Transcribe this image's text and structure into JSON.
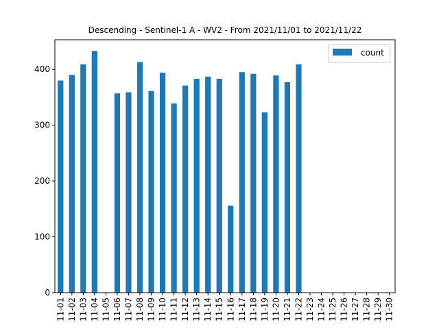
{
  "chart_data": {
    "type": "bar",
    "title": "Descending - Sentinel-1 A - WV2 - From 2021/11/01 to 2021/11/22",
    "xlabel": "",
    "ylabel": "",
    "categories": [
      "11-01",
      "11-02",
      "11-03",
      "11-04",
      "11-05",
      "11-06",
      "11-07",
      "11-08",
      "11-09",
      "11-10",
      "11-11",
      "11-12",
      "11-13",
      "11-14",
      "11-15",
      "11-16",
      "11-17",
      "11-18",
      "11-19",
      "11-20",
      "11-21",
      "11-22",
      "11-23",
      "11-24",
      "11-25",
      "11-26",
      "11-27",
      "11-28",
      "11-29",
      "11-30"
    ],
    "series": [
      {
        "name": "count",
        "color": "#1f77b4",
        "values": [
          380,
          390,
          409,
          433,
          0,
          357,
          359,
          413,
          361,
          394,
          339,
          371,
          383,
          387,
          383,
          156,
          395,
          392,
          323,
          389,
          377,
          409,
          0,
          0,
          0,
          0,
          0,
          0,
          0,
          0
        ]
      }
    ],
    "ylim": [
      0,
      453
    ],
    "yticks": [
      0,
      100,
      200,
      300,
      400
    ],
    "grid": false,
    "legend_position": "top-right"
  }
}
